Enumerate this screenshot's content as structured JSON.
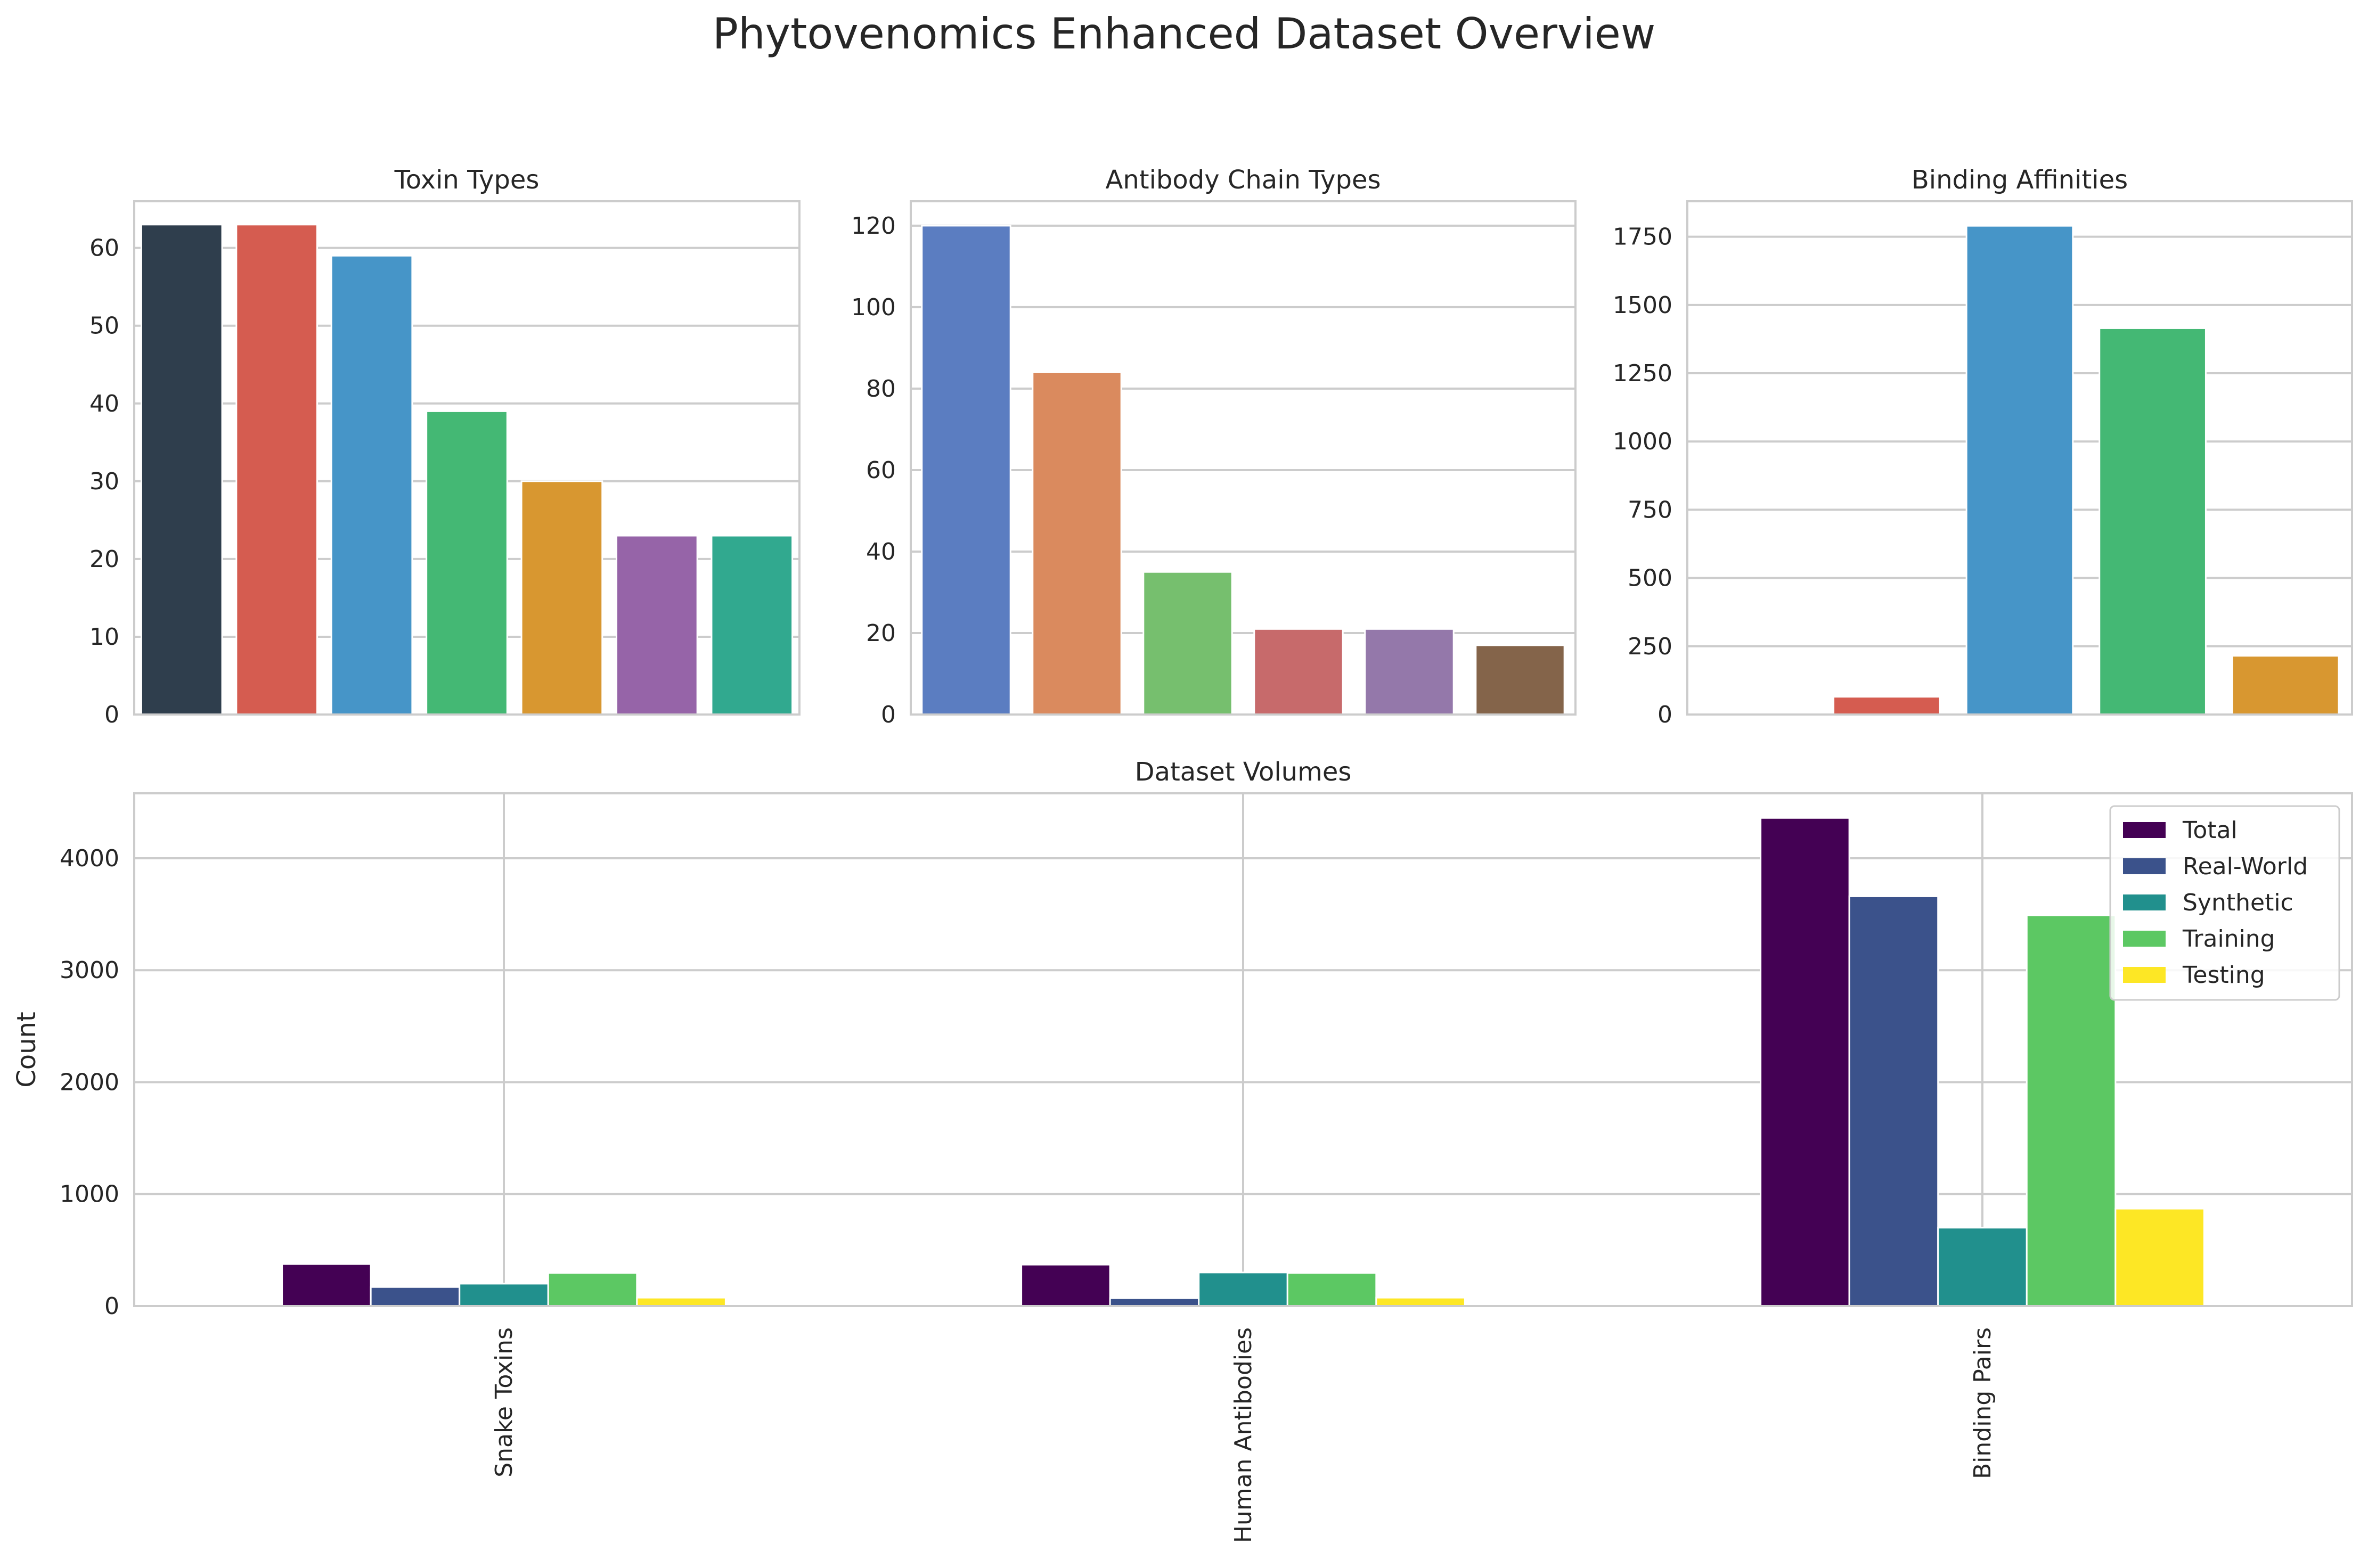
{
  "title": "Phytovenomics Enhanced Dataset Overview",
  "chart_data": [
    {
      "id": "toxin",
      "type": "bar",
      "title": "Toxin Types",
      "xlabel": "",
      "ylabel": "",
      "ylim": [
        0,
        66
      ],
      "yticks": [
        0,
        10,
        20,
        30,
        40,
        50,
        60
      ],
      "categories": [
        "",
        "",
        "",
        "",
        "",
        "",
        ""
      ],
      "values": [
        63,
        63,
        59,
        39,
        30,
        23,
        23
      ],
      "colors": [
        "#2f3e4d",
        "#d55c50",
        "#4695c8",
        "#44b874",
        "#d89730",
        "#9664a8",
        "#31a98f"
      ],
      "grid": true
    },
    {
      "id": "antibody",
      "type": "bar",
      "title": "Antibody Chain Types",
      "xlabel": "",
      "ylabel": "",
      "ylim": [
        0,
        126
      ],
      "yticks": [
        0,
        20,
        40,
        60,
        80,
        100,
        120
      ],
      "categories": [
        "",
        "",
        "",
        "",
        "",
        ""
      ],
      "values": [
        120,
        84,
        35,
        21,
        21,
        17
      ],
      "colors": [
        "#5b7dc1",
        "#da8a5e",
        "#76bf6e",
        "#c76a6b",
        "#9478aa",
        "#84644a"
      ],
      "grid": true
    },
    {
      "id": "binding",
      "type": "bar",
      "title": "Binding Affinities",
      "xlabel": "",
      "ylabel": "",
      "ylim": [
        0,
        1880
      ],
      "yticks": [
        0,
        250,
        500,
        750,
        1000,
        1250,
        1500,
        1750
      ],
      "categories": [
        "",
        "",
        "",
        "",
        ""
      ],
      "values": [
        3,
        65,
        1790,
        1415,
        215
      ],
      "colors": [
        "#2f3e4d",
        "#d55c50",
        "#4695c8",
        "#44b874",
        "#d89730"
      ],
      "grid": true
    },
    {
      "id": "volumes",
      "type": "bar",
      "title": "Dataset Volumes",
      "xlabel": "",
      "ylabel": "Count",
      "ylim": [
        0,
        4580
      ],
      "yticks": [
        0,
        1000,
        2000,
        3000,
        4000
      ],
      "categories": [
        "Snake Toxins",
        "Human Antibodies",
        "Binding Pairs"
      ],
      "series": [
        {
          "name": "Total",
          "color": "#440154",
          "values": [
            375,
            370,
            4360
          ]
        },
        {
          "name": "Real-World",
          "color": "#3b528b",
          "values": [
            170,
            70,
            3660
          ]
        },
        {
          "name": "Synthetic",
          "color": "#21908d",
          "values": [
            200,
            300,
            700
          ]
        },
        {
          "name": "Training",
          "color": "#5cc863",
          "values": [
            295,
            295,
            3490
          ]
        },
        {
          "name": "Testing",
          "color": "#fde725",
          "values": [
            75,
            75,
            870
          ]
        }
      ],
      "legend": "top-right",
      "grid": true
    }
  ]
}
